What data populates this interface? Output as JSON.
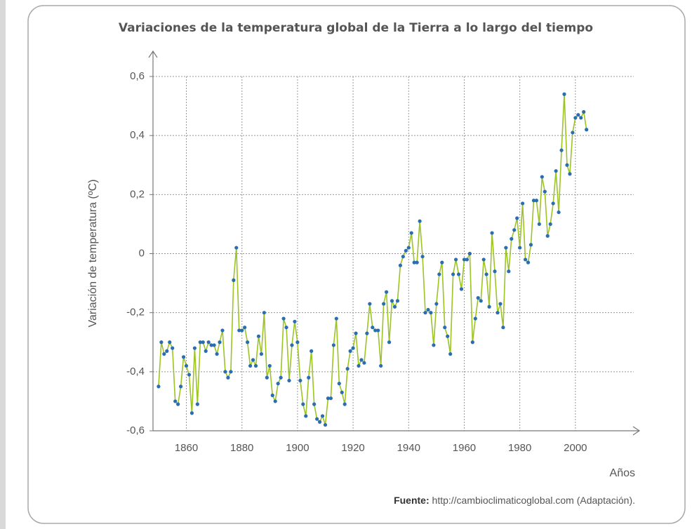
{
  "chart_data": {
    "type": "line",
    "title": "Variaciones de la temperatura global de la Tierra a lo largo del tiempo",
    "y_label": "Variación de temperatura (ºC)",
    "x_label": "Años",
    "source_label": "Fuente:",
    "source_text": "http://cambioclimaticoglobal.com (Adaptación).",
    "line_color": "#9cc424",
    "marker_color": "#2a6db0",
    "grid": true,
    "xlim": [
      1848,
      2021
    ],
    "xticks": [
      1860,
      1880,
      1900,
      1920,
      1940,
      1960,
      1980,
      2000
    ],
    "ylim": [
      -0.6,
      0.6
    ],
    "yticks": [
      {
        "value": -0.6,
        "label": "-0,6"
      },
      {
        "value": -0.4,
        "label": "-0,4"
      },
      {
        "value": -0.2,
        "label": "-0,2"
      },
      0,
      {
        "value": 0.2,
        "label": "0,2"
      },
      {
        "value": 0.4,
        "label": "0,4"
      },
      {
        "value": 0.6,
        "label": "0,6"
      }
    ],
    "x": [
      1850,
      1851,
      1852,
      1853,
      1854,
      1855,
      1856,
      1857,
      1858,
      1859,
      1860,
      1861,
      1862,
      1863,
      1864,
      1865,
      1866,
      1867,
      1868,
      1869,
      1870,
      1871,
      1872,
      1873,
      1874,
      1875,
      1876,
      1877,
      1878,
      1879,
      1880,
      1881,
      1882,
      1883,
      1884,
      1885,
      1886,
      1887,
      1888,
      1889,
      1890,
      1891,
      1892,
      1893,
      1894,
      1895,
      1896,
      1897,
      1898,
      1899,
      1900,
      1901,
      1902,
      1903,
      1904,
      1905,
      1906,
      1907,
      1908,
      1909,
      1910,
      1911,
      1912,
      1913,
      1914,
      1915,
      1916,
      1917,
      1918,
      1919,
      1920,
      1921,
      1922,
      1923,
      1924,
      1925,
      1926,
      1927,
      1928,
      1929,
      1930,
      1931,
      1932,
      1933,
      1934,
      1935,
      1936,
      1937,
      1938,
      1939,
      1940,
      1941,
      1942,
      1943,
      1944,
      1945,
      1946,
      1947,
      1948,
      1949,
      1950,
      1951,
      1952,
      1953,
      1954,
      1955,
      1956,
      1957,
      1958,
      1959,
      1960,
      1961,
      1962,
      1963,
      1964,
      1965,
      1966,
      1967,
      1968,
      1969,
      1970,
      1971,
      1972,
      1973,
      1974,
      1975,
      1976,
      1977,
      1978,
      1979,
      1980,
      1981,
      1982,
      1983,
      1984,
      1985,
      1986,
      1987,
      1988,
      1989,
      1990,
      1991,
      1992,
      1993,
      1994,
      1995,
      1996,
      1997,
      1998,
      1999,
      2000,
      2001,
      2002,
      2003,
      2004
    ],
    "values": [
      -0.45,
      -0.3,
      -0.34,
      -0.33,
      -0.3,
      -0.32,
      -0.5,
      -0.51,
      -0.45,
      -0.35,
      -0.38,
      -0.41,
      -0.54,
      -0.32,
      -0.51,
      -0.3,
      -0.3,
      -0.33,
      -0.3,
      -0.31,
      -0.31,
      -0.34,
      -0.3,
      -0.26,
      -0.4,
      -0.42,
      -0.4,
      -0.09,
      0.02,
      -0.26,
      -0.26,
      -0.25,
      -0.3,
      -0.38,
      -0.36,
      -0.38,
      -0.28,
      -0.34,
      -0.2,
      -0.42,
      -0.38,
      -0.48,
      -0.5,
      -0.44,
      -0.42,
      -0.22,
      -0.25,
      -0.43,
      -0.31,
      -0.23,
      -0.3,
      -0.43,
      -0.51,
      -0.55,
      -0.42,
      -0.33,
      -0.51,
      -0.56,
      -0.57,
      -0.55,
      -0.58,
      -0.49,
      -0.49,
      -0.31,
      -0.22,
      -0.44,
      -0.47,
      -0.51,
      -0.39,
      -0.33,
      -0.32,
      -0.27,
      -0.38,
      -0.36,
      -0.37,
      -0.27,
      -0.17,
      -0.25,
      -0.26,
      -0.26,
      -0.38,
      -0.17,
      -0.13,
      -0.3,
      -0.16,
      -0.18,
      -0.16,
      -0.04,
      -0.01,
      0.01,
      0.02,
      0.07,
      -0.03,
      -0.03,
      0.11,
      -0.01,
      -0.2,
      -0.19,
      -0.2,
      -0.31,
      -0.17,
      -0.07,
      -0.03,
      -0.25,
      -0.28,
      -0.34,
      -0.07,
      -0.02,
      -0.07,
      -0.12,
      -0.02,
      -0.02,
      0.0,
      -0.3,
      -0.22,
      -0.15,
      -0.16,
      -0.02,
      -0.07,
      -0.18,
      0.07,
      -0.06,
      -0.2,
      -0.17,
      -0.25,
      0.02,
      -0.06,
      0.05,
      0.08,
      0.12,
      0.02,
      0.17,
      -0.02,
      -0.03,
      0.03,
      0.18,
      0.18,
      0.1,
      0.26,
      0.21,
      0.06,
      0.1,
      0.17,
      0.28,
      0.14,
      0.35,
      0.54,
      0.3,
      0.27,
      0.41,
      0.46,
      0.47,
      0.46,
      0.48,
      0.42
    ]
  }
}
